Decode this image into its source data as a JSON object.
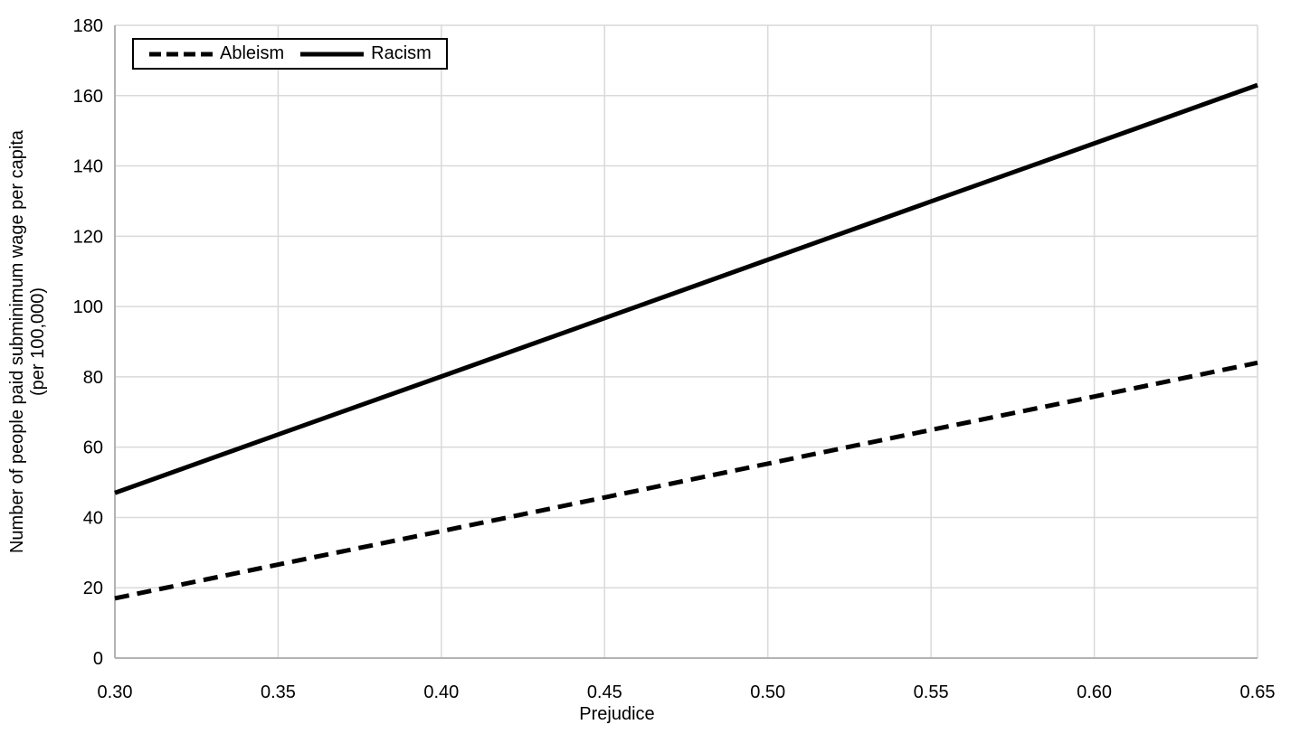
{
  "chart_data": {
    "type": "line",
    "title": "",
    "xlabel": "Prejudice",
    "ylabel": "Number of people paid subminimum wage per capita (per 100,000)",
    "ylabel_line1": "Number of people paid subminimum wage per capita",
    "ylabel_line2": "(per 100,000)",
    "xlim": [
      0.3,
      0.65
    ],
    "ylim": [
      0,
      180
    ],
    "x_ticks": [
      0.3,
      0.35,
      0.4,
      0.45,
      0.5,
      0.55,
      0.6,
      0.65
    ],
    "x_tick_labels": [
      "0.30",
      "0.35",
      "0.40",
      "0.45",
      "0.50",
      "0.55",
      "0.60",
      "0.65"
    ],
    "y_ticks": [
      0,
      20,
      40,
      60,
      80,
      100,
      120,
      140,
      160,
      180
    ],
    "y_tick_labels": [
      "0",
      "20",
      "40",
      "60",
      "80",
      "100",
      "120",
      "140",
      "160",
      "180"
    ],
    "grid": true,
    "legend_position": "top-left",
    "legend_border": true,
    "colors": {
      "line": "#000000",
      "grid": "#d9d9d9",
      "axis": "#b3b3b3",
      "text": "#000000",
      "background": "#ffffff"
    },
    "series": [
      {
        "name": "Ableism",
        "style": "dashed",
        "color": "#000000",
        "x": [
          0.3,
          0.35,
          0.4,
          0.45,
          0.5,
          0.55,
          0.6,
          0.65
        ],
        "y": [
          17,
          26.6,
          36.1,
          45.7,
          55.3,
          64.9,
          74.4,
          84
        ]
      },
      {
        "name": "Racism",
        "style": "solid",
        "color": "#000000",
        "x": [
          0.3,
          0.35,
          0.4,
          0.45,
          0.5,
          0.55,
          0.6,
          0.65
        ],
        "y": [
          47,
          63.6,
          80.1,
          96.7,
          113.3,
          129.9,
          146.4,
          163
        ]
      }
    ]
  }
}
